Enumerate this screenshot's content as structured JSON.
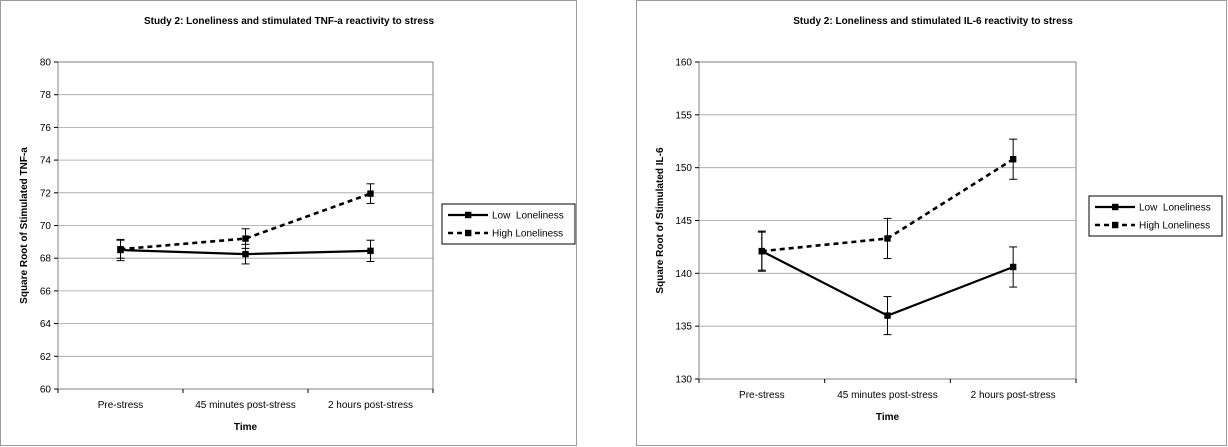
{
  "chart_data": [
    {
      "type": "line",
      "title": "Study 2: Loneliness and stimulated TNF-a reactivity to stress",
      "xlabel": "Time",
      "ylabel": "Square Root of Stimulated TNF-a",
      "categories": [
        "Pre-stress",
        "45 minutes post-stress",
        "2 hours post-stress"
      ],
      "ylim": [
        60,
        80
      ],
      "ytick_step": 2,
      "y_ticks": [
        "60",
        "62",
        "64",
        "66",
        "68",
        "70",
        "72",
        "74",
        "76",
        "78",
        "80"
      ],
      "grid": true,
      "legend_position": "right",
      "series": [
        {
          "name": "Low  Loneliness",
          "style": "solid",
          "color": "#000000",
          "values": [
            68.5,
            68.25,
            68.45
          ],
          "errors": [
            0.65,
            0.6,
            0.65
          ]
        },
        {
          "name": "High Loneliness",
          "style": "dashed",
          "color": "#000000",
          "values": [
            68.55,
            69.2,
            71.95
          ],
          "errors": [
            0.55,
            0.6,
            0.6
          ]
        }
      ]
    },
    {
      "type": "line",
      "title": "Study 2: Loneliness and stimulated IL-6 reactivity to stress",
      "xlabel": "Time",
      "ylabel": "Square Root of Stimulated IL-6",
      "categories": [
        "Pre-stress",
        "45 minutes post-stress",
        "2 hours post-stress"
      ],
      "ylim": [
        130,
        160
      ],
      "ytick_step": 5,
      "y_ticks": [
        "130",
        "135",
        "140",
        "145",
        "150",
        "155",
        "160"
      ],
      "grid": true,
      "legend_position": "right",
      "series": [
        {
          "name": "Low  Loneliness",
          "style": "solid",
          "color": "#000000",
          "values": [
            142.1,
            136.0,
            140.6
          ],
          "errors": [
            1.9,
            1.8,
            1.9
          ]
        },
        {
          "name": "High Loneliness",
          "style": "dashed",
          "color": "#000000",
          "values": [
            142.1,
            143.3,
            150.8
          ],
          "errors": [
            1.8,
            1.9,
            1.9
          ]
        }
      ]
    }
  ]
}
